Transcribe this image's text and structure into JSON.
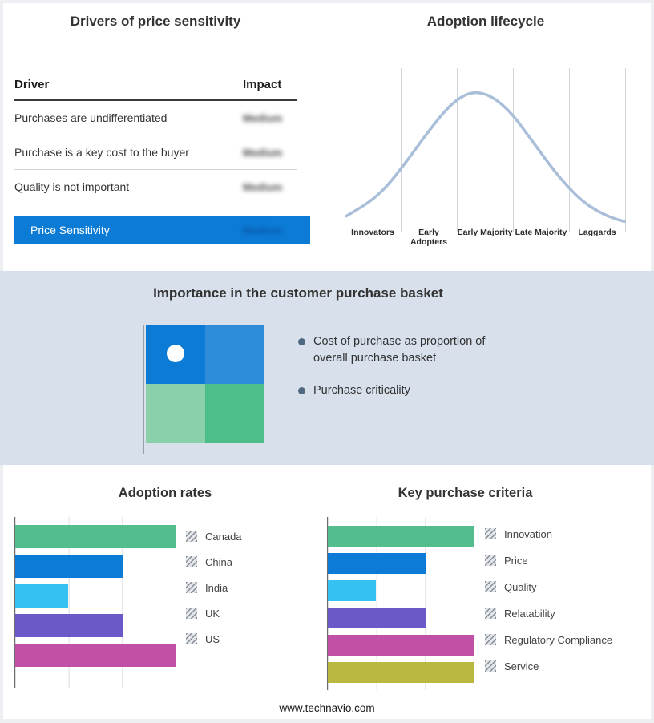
{
  "theme": {
    "page_bg": "#edeff2",
    "panel_bg": "#ffffff",
    "band_bg": "#d8e0eb",
    "accent_blue": "#0c7bd6"
  },
  "drivers_panel": {
    "title": "Drivers of price sensitivity",
    "columns": {
      "driver": "Driver",
      "impact": "Impact"
    },
    "rows": [
      {
        "driver": "Purchases are undifferentiated",
        "impact": "Medium"
      },
      {
        "driver": "Purchase is a key cost to the buyer",
        "impact": "Medium"
      },
      {
        "driver": "Quality is not important",
        "impact": "Medium"
      }
    ],
    "summary_row": {
      "label": "Price Sensitivity",
      "impact": "Medium",
      "bg_color": "#0c7bd6"
    }
  },
  "lifecycle_panel": {
    "title": "Adoption lifecycle",
    "stage_labels": [
      "Innovators",
      "Early Adopters",
      "Early Majority",
      "Late Majority",
      "Laggards"
    ]
  },
  "basket_panel": {
    "title": "Importance in the customer purchase basket",
    "bullets": [
      "Cost of purchase as proportion of overall purchase basket",
      "Purchase criticality"
    ],
    "quadrant_colors": {
      "top_left": "#0c7bd6",
      "top_right": "#2e8bd9",
      "bottom_left": "#8ad0ab",
      "bottom_right": "#4dbd8a"
    }
  },
  "adoption_panel": {
    "title": "Adoption rates"
  },
  "criteria_panel": {
    "title": "Key purchase criteria"
  },
  "footer": {
    "url": "www.technavio.com"
  },
  "chart_data": [
    {
      "id": "adoption_lifecycle",
      "type": "line",
      "title": "Adoption lifecycle",
      "categories": [
        "Innovators",
        "Early Adopters",
        "Early Majority",
        "Late Majority",
        "Laggards"
      ],
      "curve_points_pct": [
        8,
        14,
        21,
        31,
        44,
        58,
        72,
        85,
        95,
        100,
        99,
        93,
        83,
        69,
        55,
        41,
        29,
        19,
        12,
        7,
        4
      ],
      "color": "#a9bed9",
      "grid": "vertical stage boundaries",
      "legend_position": "none"
    },
    {
      "id": "adoption_rates",
      "type": "bar",
      "orientation": "horizontal",
      "title": "Adoption rates",
      "categories": [
        "Canada",
        "China",
        "India",
        "UK",
        "US"
      ],
      "values": [
        100,
        67,
        33,
        67,
        100
      ],
      "colors": [
        "#54bd8e",
        "#0c7bd6",
        "#36c1f3",
        "#6b59c7",
        "#c151a7"
      ],
      "xlim": [
        0,
        100
      ],
      "grid": true,
      "legend_position": "right"
    },
    {
      "id": "key_purchase_criteria",
      "type": "bar",
      "orientation": "horizontal",
      "title": "Key purchase criteria",
      "categories": [
        "Innovation",
        "Price",
        "Quality",
        "Relatability",
        "Regulatory Compliance",
        "Service"
      ],
      "values": [
        100,
        67,
        33,
        67,
        100,
        100
      ],
      "colors": [
        "#54bd8e",
        "#0c7bd6",
        "#36c1f3",
        "#6b59c7",
        "#c151a7",
        "#bab83e"
      ],
      "xlim": [
        0,
        100
      ],
      "grid": true,
      "legend_position": "right"
    }
  ]
}
